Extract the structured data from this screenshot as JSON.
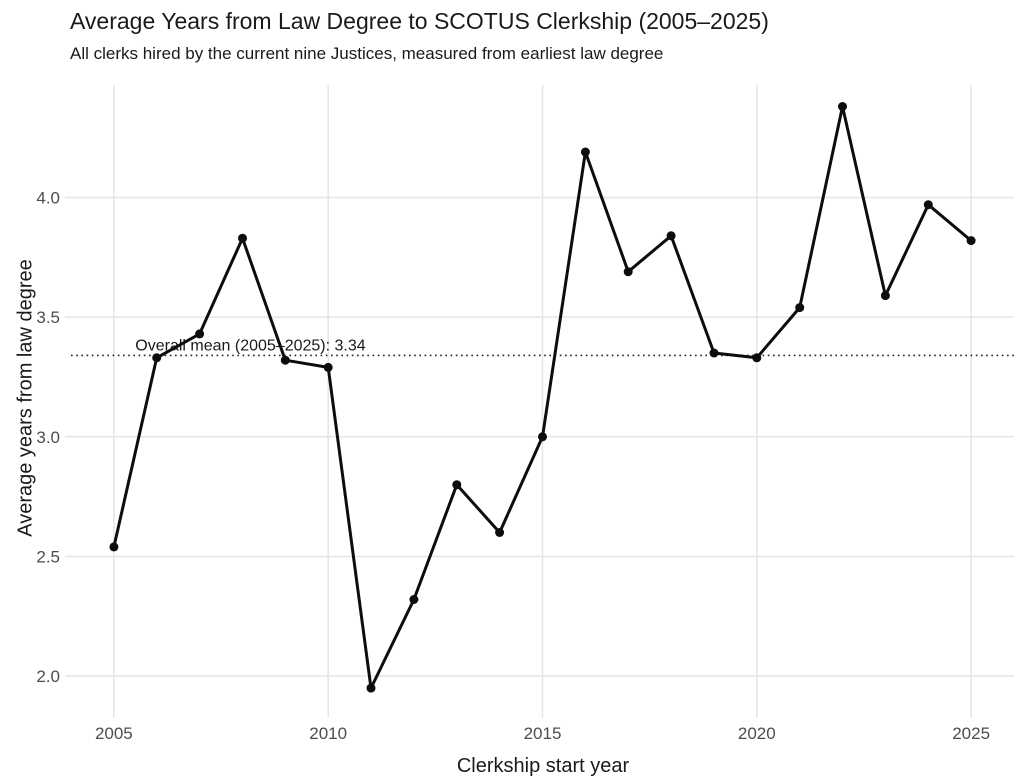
{
  "chart_data": {
    "type": "line",
    "title": "Average Years from Law Degree to SCOTUS Clerkship (2005–2025)",
    "subtitle": "All clerks hired by the current nine Justices, measured from earliest law degree",
    "xlabel": "Clerkship start year",
    "ylabel": "Average years from law degree",
    "x": [
      2005,
      2006,
      2007,
      2008,
      2009,
      2010,
      2011,
      2012,
      2013,
      2014,
      2015,
      2016,
      2017,
      2018,
      2019,
      2020,
      2021,
      2022,
      2023,
      2024,
      2025
    ],
    "values": [
      2.54,
      3.33,
      3.43,
      3.83,
      3.32,
      3.29,
      1.95,
      2.32,
      2.8,
      2.6,
      3.0,
      4.19,
      3.69,
      3.84,
      3.35,
      3.33,
      3.54,
      4.38,
      3.59,
      3.97,
      3.82
    ],
    "x_ticks": [
      2005,
      2010,
      2015,
      2020,
      2025
    ],
    "y_ticks": [
      2.0,
      2.5,
      3.0,
      3.5,
      4.0
    ],
    "xlim": [
      2004,
      2026
    ],
    "ylim": [
      1.85,
      4.47
    ],
    "grid": true,
    "legend": "none",
    "mean_line": {
      "value": 3.34,
      "label": "Overall mean (2005–2025): 3.34",
      "label_x": 2005.5
    },
    "colors": {
      "line": "#0d0d0d",
      "point": "#0d0d0d",
      "grid": "#e5e5e5",
      "tick_label": "#4d4d4d",
      "text": "#1a1a1a",
      "mean_line": "#222222",
      "background": "#ffffff"
    }
  }
}
